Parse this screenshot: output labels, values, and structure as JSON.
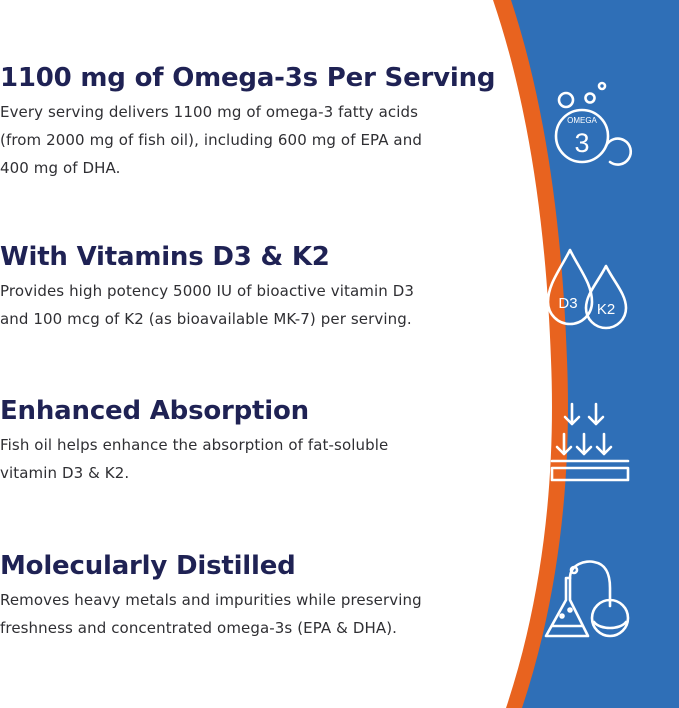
{
  "features": [
    {
      "title": "1100 mg of Omega-3s Per Serving",
      "body_line1": "Every serving delivers 1100 mg of omega-3 fatty acids",
      "body_line2": "(from 2000 mg of fish oil), including 600 mg of EPA and",
      "body_line3": "400 mg of DHA.",
      "icon": "omega-3-droplets-icon",
      "icon_label_top": "OMEGA",
      "icon_label_big": "3"
    },
    {
      "title": "With Vitamins D3 & K2",
      "body_line1": "Provides high potency 5000 IU of bioactive vitamin D3",
      "body_line2": "and 100 mcg of K2 (as bioavailable MK-7) per serving.",
      "icon": "d3-k2-drops-icon",
      "icon_label_left": "D3",
      "icon_label_right": "K2"
    },
    {
      "title": "Enhanced Absorption",
      "body_line1": "Fish oil helps enhance the absorption of fat-soluble",
      "body_line2": "vitamin D3 & K2.",
      "icon": "absorption-arrows-icon"
    },
    {
      "title": "Molecularly Distilled",
      "body_line1": "Removes heavy metals and impurities while preserving",
      "body_line2": "freshness and concentrated omega-3s (EPA & DHA).",
      "icon": "distillation-flasks-icon"
    }
  ],
  "colors": {
    "title": "#1f2254",
    "body": "#2f2f33",
    "band_blue": "#2f6fb7",
    "band_orange": "#e8631f",
    "icon_stroke": "#ffffff"
  }
}
